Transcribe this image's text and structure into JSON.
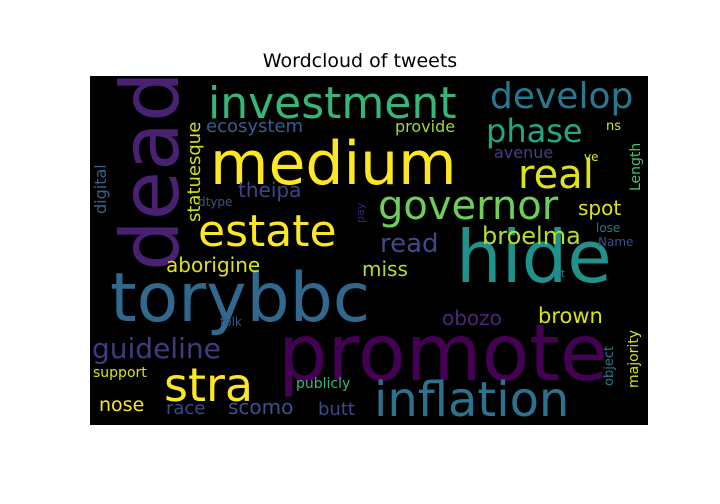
{
  "chart_data": {
    "type": "wordcloud",
    "title": "Wordcloud of tweets",
    "background": "#000000",
    "words": [
      {
        "text": "promote",
        "color": "#440154"
      },
      {
        "text": "torybbc",
        "color": "#31688e"
      },
      {
        "text": "hide",
        "color": "#21918c"
      },
      {
        "text": "dead",
        "color": "#482173"
      },
      {
        "text": "medium",
        "color": "#fde725"
      },
      {
        "text": "inflation",
        "color": "#2c728e"
      },
      {
        "text": "investment",
        "color": "#35b779"
      },
      {
        "text": "estate",
        "color": "#fde725"
      },
      {
        "text": "real",
        "color": "#dde318"
      },
      {
        "text": "governor",
        "color": "#6ece58"
      },
      {
        "text": "stra",
        "color": "#fde725"
      },
      {
        "text": "develop",
        "color": "#2a788e"
      },
      {
        "text": "phase",
        "color": "#22a884"
      },
      {
        "text": "guideline",
        "color": "#443983"
      },
      {
        "text": "read",
        "color": "#3e4989"
      },
      {
        "text": "broelma",
        "color": "#b5de2b"
      },
      {
        "text": "aborigine",
        "color": "#dde318"
      },
      {
        "text": "theipa",
        "color": "#414487"
      },
      {
        "text": "brown",
        "color": "#d8e219"
      },
      {
        "text": "scomo",
        "color": "#3b528b"
      },
      {
        "text": "miss",
        "color": "#b5de2b"
      },
      {
        "text": "obozo",
        "color": "#482878"
      },
      {
        "text": "spot",
        "color": "#dde318"
      },
      {
        "text": "race",
        "color": "#3e4a89"
      },
      {
        "text": "nose",
        "color": "#fde725"
      },
      {
        "text": "butt",
        "color": "#3e4989"
      },
      {
        "text": "statuesque",
        "color": "#d0e11c"
      },
      {
        "text": "ecosystem",
        "color": "#355f8d"
      },
      {
        "text": "provide",
        "color": "#9fda3a"
      },
      {
        "text": "avenue",
        "color": "#433e85"
      },
      {
        "text": "digital",
        "color": "#33638d"
      },
      {
        "text": "support",
        "color": "#dde318"
      },
      {
        "text": "publicly",
        "color": "#35b779"
      },
      {
        "text": "majority",
        "color": "#d8e219"
      },
      {
        "text": "object",
        "color": "#2a788e"
      },
      {
        "text": "Length",
        "color": "#4ac16d"
      },
      {
        "text": "folk",
        "color": "#3b528b"
      },
      {
        "text": "dtype",
        "color": "#3b528b"
      },
      {
        "text": "pay",
        "color": "#3b1c8c"
      },
      {
        "text": "ns",
        "color": "#dde318"
      },
      {
        "text": "ve",
        "color": "#dde318"
      },
      {
        "text": "lose",
        "color": "#2a788e"
      },
      {
        "text": "lst",
        "color": "#2a788e"
      },
      {
        "text": "Name",
        "color": "#3e4a89"
      }
    ]
  }
}
